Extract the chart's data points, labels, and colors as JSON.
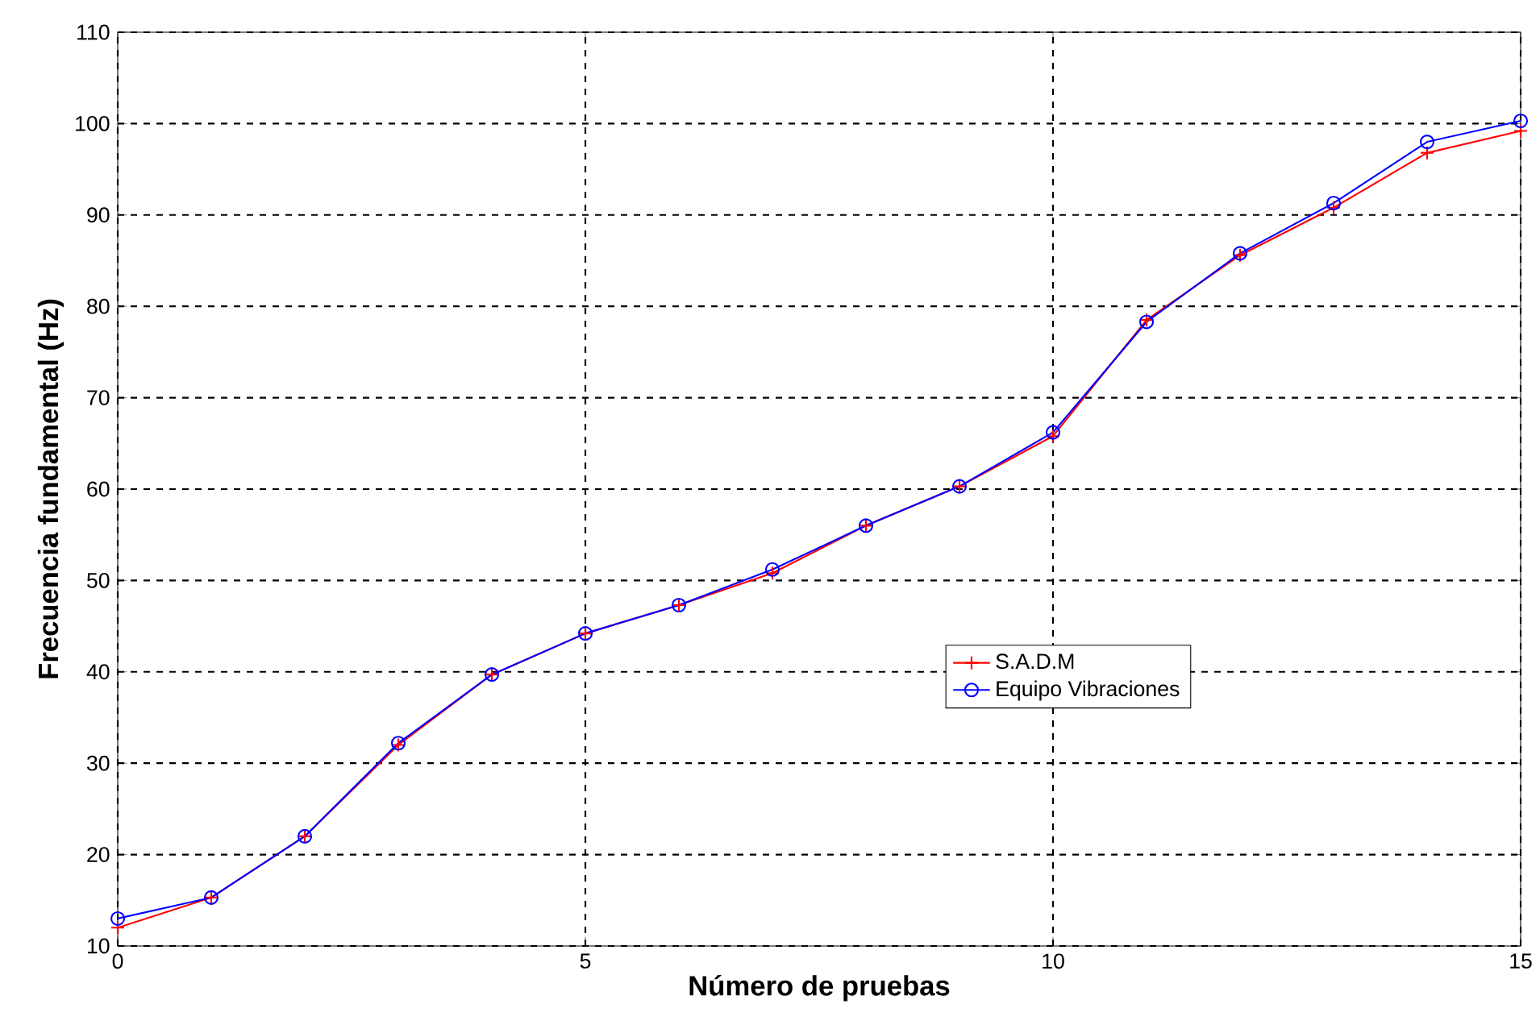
{
  "chart_data": {
    "type": "line",
    "xlabel": "Número de pruebas",
    "ylabel": "Frecuencia fundamental (Hz)",
    "x": [
      0,
      1,
      2,
      3,
      4,
      5,
      6,
      7,
      8,
      9,
      10,
      11,
      12,
      13,
      14,
      15
    ],
    "series": [
      {
        "name": "S.A.D.M",
        "color": "#ff0000",
        "marker": "cross",
        "values": [
          12,
          15.3,
          22,
          32,
          39.7,
          44.2,
          47.3,
          50.8,
          56,
          60.3,
          65.8,
          78.5,
          85.6,
          90.8,
          96.8,
          99.2
        ]
      },
      {
        "name": "Equipo Vibraciones",
        "color": "#0000ff",
        "marker": "circle",
        "values": [
          13,
          15.3,
          22,
          32.2,
          39.7,
          44.2,
          47.3,
          51.2,
          56,
          60.3,
          66.2,
          78.3,
          85.8,
          91.3,
          98,
          100.3
        ]
      }
    ],
    "xlim": [
      0,
      15
    ],
    "xticks": [
      0,
      5,
      10,
      15
    ],
    "ylim": [
      10,
      110
    ],
    "yticks": [
      10,
      20,
      30,
      40,
      50,
      60,
      70,
      80,
      90,
      100,
      110
    ],
    "grid": true,
    "legend": "right",
    "line_style": "solid"
  }
}
